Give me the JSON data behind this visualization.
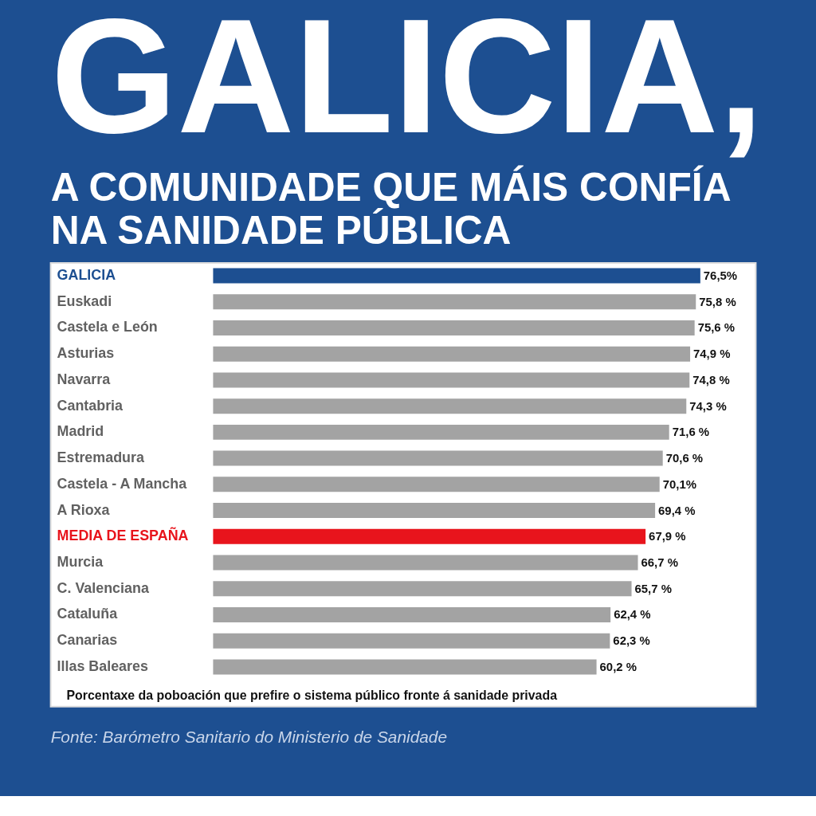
{
  "chart_data": {
    "type": "bar",
    "orientation": "horizontal",
    "title": "GALICIA,",
    "subtitle": "A COMUNIDADE QUE MÁIS CONFÍA NA SANIDADE PÚBLICA",
    "categories": [
      "GALICIA",
      "Euskadi",
      "Castela e León",
      "Asturias",
      "Navarra",
      "Cantabria",
      "Madrid",
      "Estremadura",
      "Castela - A Mancha",
      "A Rioxa",
      "MEDIA DE ESPAÑA",
      "Murcia",
      "C. Valenciana",
      "Cataluña",
      "Canarias",
      "Illas Baleares"
    ],
    "values": [
      76.5,
      75.8,
      75.6,
      74.9,
      74.8,
      74.3,
      71.6,
      70.6,
      70.1,
      69.4,
      67.9,
      66.7,
      65.7,
      62.4,
      62.3,
      60.2
    ],
    "colors": [
      "#1d4f91",
      "#a3a3a3",
      "#a3a3a3",
      "#a3a3a3",
      "#a3a3a3",
      "#a3a3a3",
      "#a3a3a3",
      "#a3a3a3",
      "#a3a3a3",
      "#a3a3a3",
      "#e8141c",
      "#a3a3a3",
      "#a3a3a3",
      "#a3a3a3",
      "#a3a3a3",
      "#a3a3a3"
    ],
    "value_labels": [
      "76,5%",
      "75,8 %",
      "75,6 %",
      "74,9 %",
      "74,8 %",
      "74,3 %",
      "71,6 %",
      "70,6 %",
      "70,1%",
      "69,4 %",
      "67,9 %",
      "66,7 %",
      "65,7 %",
      "62,4 %",
      "62,3 %",
      "60,2 %"
    ],
    "xlabel": "Porcentaxe da poboación que prefire o sistema público fronte á sanidade privada",
    "annotations": [
      "Fonte: Barómetro Sanitario do Ministerio de Sanidade"
    ]
  }
}
